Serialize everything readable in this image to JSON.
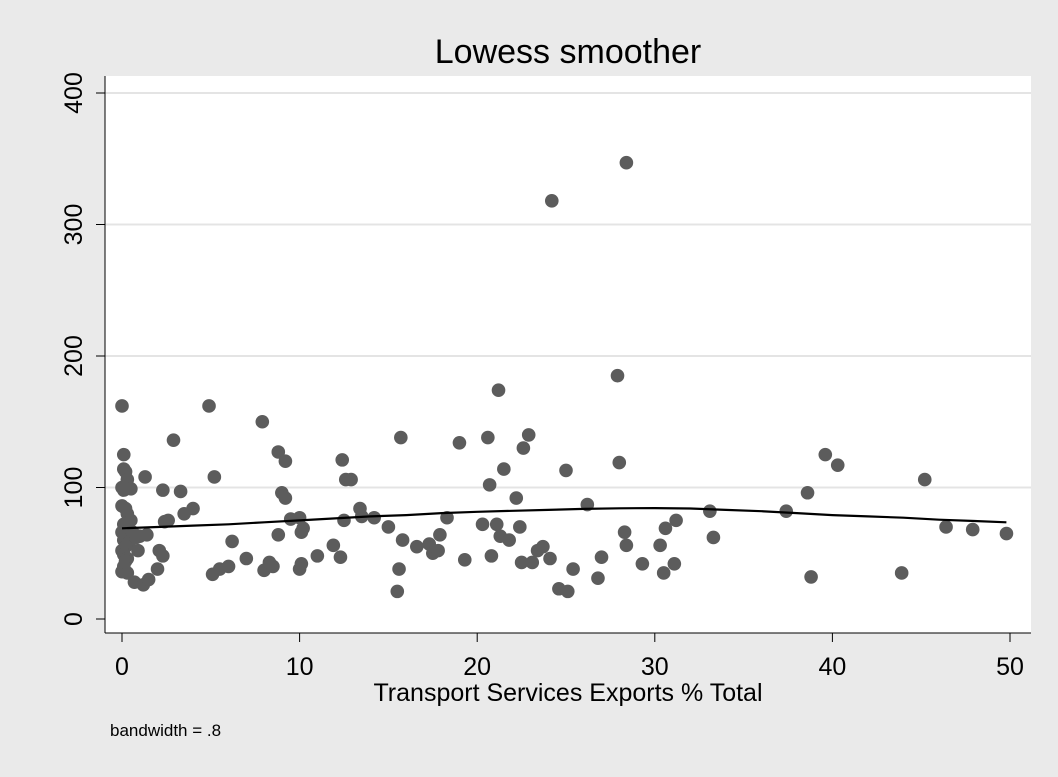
{
  "chart_data": {
    "type": "scatter",
    "title": "Lowess smoother",
    "xlabel": "Transport Services Exports % Total",
    "ylabel": "",
    "note": "bandwidth = .8",
    "xlim": [
      0,
      50
    ],
    "ylim": [
      0,
      400
    ],
    "xticks": [
      0,
      10,
      20,
      30,
      40,
      50
    ],
    "yticks": [
      0,
      100,
      200,
      300,
      400
    ],
    "grid": true,
    "colors": {
      "marker": "#5c5c5c",
      "line": "#000000",
      "plot_bg": "#ffffff",
      "page_bg": "#eaeaea",
      "grid": "#e4e4e4"
    },
    "points": [
      [
        0.0,
        162
      ],
      [
        0.1,
        125
      ],
      [
        0.1,
        114
      ],
      [
        0.2,
        112
      ],
      [
        0.3,
        106
      ],
      [
        0.0,
        100
      ],
      [
        0.1,
        98
      ],
      [
        0.5,
        99
      ],
      [
        0.0,
        86
      ],
      [
        0.2,
        84
      ],
      [
        0.3,
        80
      ],
      [
        0.5,
        75
      ],
      [
        0.1,
        72
      ],
      [
        0.2,
        68
      ],
      [
        0.0,
        66
      ],
      [
        0.3,
        63
      ],
      [
        0.1,
        60
      ],
      [
        0.4,
        58
      ],
      [
        0.2,
        55
      ],
      [
        0.0,
        52
      ],
      [
        0.1,
        49
      ],
      [
        0.3,
        46
      ],
      [
        0.2,
        44
      ],
      [
        0.1,
        40
      ],
      [
        0.0,
        36
      ],
      [
        0.3,
        35
      ],
      [
        0.6,
        66
      ],
      [
        0.8,
        62
      ],
      [
        0.9,
        52
      ],
      [
        0.7,
        28
      ],
      [
        1.2,
        26
      ],
      [
        1.5,
        30
      ],
      [
        1.0,
        63
      ],
      [
        1.4,
        64
      ],
      [
        1.3,
        108
      ],
      [
        2.0,
        38
      ],
      [
        2.1,
        52
      ],
      [
        2.3,
        48
      ],
      [
        2.3,
        98
      ],
      [
        2.4,
        74
      ],
      [
        2.6,
        75
      ],
      [
        2.9,
        136
      ],
      [
        3.3,
        97
      ],
      [
        3.5,
        80
      ],
      [
        4.0,
        84
      ],
      [
        4.9,
        162
      ],
      [
        5.2,
        108
      ],
      [
        5.1,
        34
      ],
      [
        5.5,
        38
      ],
      [
        6.0,
        40
      ],
      [
        6.2,
        59
      ],
      [
        7.0,
        46
      ],
      [
        7.9,
        150
      ],
      [
        8.0,
        37
      ],
      [
        8.3,
        43
      ],
      [
        8.5,
        40
      ],
      [
        8.8,
        127
      ],
      [
        8.8,
        64
      ],
      [
        9.0,
        96
      ],
      [
        9.2,
        92
      ],
      [
        9.2,
        120
      ],
      [
        9.5,
        76
      ],
      [
        10.0,
        77
      ],
      [
        10.1,
        66
      ],
      [
        10.2,
        69
      ],
      [
        10.1,
        42
      ],
      [
        10.0,
        38
      ],
      [
        11.0,
        48
      ],
      [
        11.9,
        56
      ],
      [
        12.3,
        47
      ],
      [
        12.4,
        121
      ],
      [
        12.5,
        75
      ],
      [
        12.6,
        106
      ],
      [
        12.9,
        106
      ],
      [
        13.4,
        84
      ],
      [
        13.5,
        78
      ],
      [
        14.2,
        77
      ],
      [
        15.0,
        70
      ],
      [
        15.5,
        21
      ],
      [
        15.6,
        38
      ],
      [
        15.7,
        138
      ],
      [
        15.8,
        60
      ],
      [
        16.6,
        55
      ],
      [
        17.3,
        57
      ],
      [
        17.5,
        50
      ],
      [
        17.8,
        52
      ],
      [
        17.9,
        64
      ],
      [
        18.3,
        77
      ],
      [
        19.0,
        134
      ],
      [
        19.3,
        45
      ],
      [
        20.3,
        72
      ],
      [
        20.6,
        138
      ],
      [
        20.7,
        102
      ],
      [
        20.8,
        48
      ],
      [
        21.1,
        72
      ],
      [
        21.2,
        174
      ],
      [
        21.3,
        63
      ],
      [
        21.5,
        114
      ],
      [
        21.8,
        60
      ],
      [
        22.2,
        92
      ],
      [
        22.4,
        70
      ],
      [
        22.5,
        43
      ],
      [
        22.6,
        130
      ],
      [
        22.9,
        140
      ],
      [
        23.1,
        43
      ],
      [
        23.4,
        52
      ],
      [
        23.7,
        55
      ],
      [
        24.1,
        46
      ],
      [
        24.2,
        318
      ],
      [
        24.6,
        23
      ],
      [
        25.0,
        113
      ],
      [
        25.1,
        21
      ],
      [
        25.4,
        38
      ],
      [
        26.2,
        87
      ],
      [
        26.8,
        31
      ],
      [
        27.0,
        47
      ],
      [
        27.9,
        185
      ],
      [
        28.0,
        119
      ],
      [
        28.3,
        66
      ],
      [
        28.4,
        56
      ],
      [
        28.4,
        347
      ],
      [
        29.3,
        42
      ],
      [
        30.3,
        56
      ],
      [
        30.5,
        35
      ],
      [
        30.6,
        69
      ],
      [
        31.2,
        75
      ],
      [
        31.1,
        42
      ],
      [
        33.1,
        82
      ],
      [
        33.3,
        62
      ],
      [
        37.4,
        82
      ],
      [
        38.6,
        96
      ],
      [
        38.8,
        32
      ],
      [
        39.6,
        125
      ],
      [
        40.3,
        117
      ],
      [
        43.9,
        35
      ],
      [
        45.2,
        106
      ],
      [
        46.4,
        70
      ],
      [
        47.9,
        68
      ],
      [
        49.8,
        65
      ]
    ],
    "lowess": [
      [
        0,
        69
      ],
      [
        2,
        70
      ],
      [
        4,
        71
      ],
      [
        6,
        72
      ],
      [
        8,
        73.5
      ],
      [
        10,
        75
      ],
      [
        12,
        76.5
      ],
      [
        14,
        78
      ],
      [
        16,
        79
      ],
      [
        18,
        80.5
      ],
      [
        20,
        81.5
      ],
      [
        22,
        82.3
      ],
      [
        24,
        83
      ],
      [
        26,
        83.7
      ],
      [
        28,
        84.2
      ],
      [
        30,
        84.3
      ],
      [
        32,
        84
      ],
      [
        34,
        83
      ],
      [
        36,
        82
      ],
      [
        38,
        80.5
      ],
      [
        40,
        79
      ],
      [
        42,
        78
      ],
      [
        44,
        77
      ],
      [
        46,
        75.5
      ],
      [
        48,
        74.5
      ],
      [
        49.8,
        73.5
      ]
    ]
  }
}
